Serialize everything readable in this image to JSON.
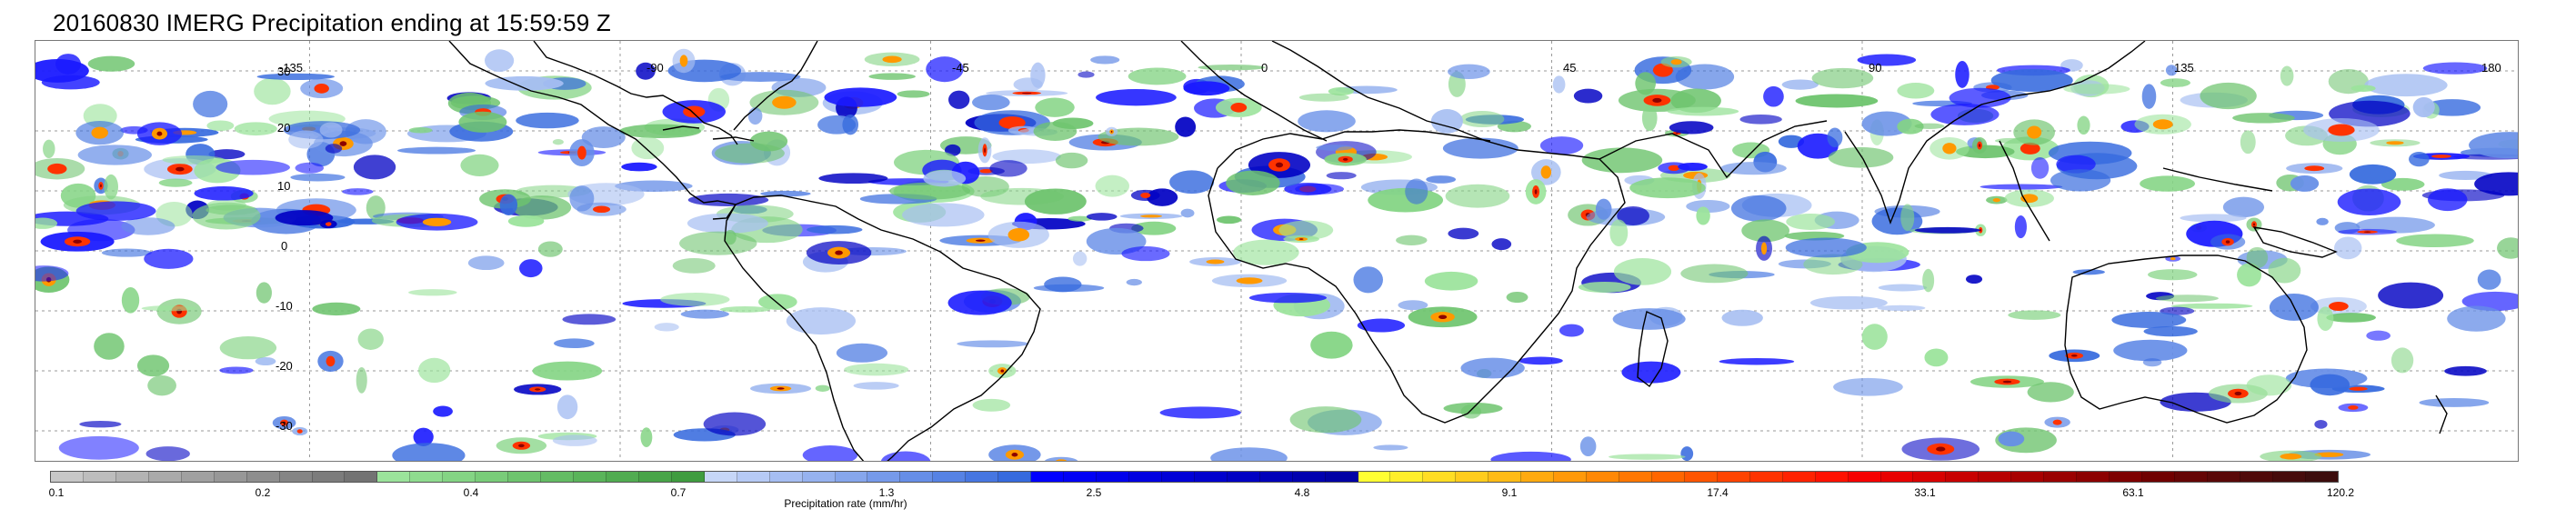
{
  "title": "20160830 IMERG Precipitation ending at 15:59:59 Z",
  "map": {
    "lon_labels": [
      "-135",
      "-90",
      "-45",
      "0",
      "45",
      "90",
      "135",
      "180"
    ],
    "lat_labels": [
      "30",
      "20",
      "10",
      "0",
      "-10",
      "-20",
      "-30"
    ]
  },
  "colorbar": {
    "label": "Precipitation rate (mm/hr)",
    "tick_labels": [
      "0.1",
      "0.2",
      "0.4",
      "0.7",
      "1.3",
      "2.5",
      "4.8",
      "9.1",
      "17.4",
      "33.1",
      "63.1",
      "120.2"
    ],
    "colors": [
      "#c7c7c7",
      "#bdbdbd",
      "#b3b3b3",
      "#aaaaaa",
      "#a0a0a0",
      "#979797",
      "#8e8e8e",
      "#858585",
      "#7c7c7c",
      "#737373",
      "#9be39b",
      "#8fdc8f",
      "#84d484",
      "#79cc79",
      "#6ec46e",
      "#64bc64",
      "#5ab45a",
      "#51ac51",
      "#48a448",
      "#3f9c3f",
      "#c6d6f7",
      "#b6caf5",
      "#a6bef2",
      "#96b2ef",
      "#86a6ec",
      "#769aea",
      "#668ee7",
      "#5682e4",
      "#4676e1",
      "#366ade",
      "#0000ff",
      "#0000f5",
      "#0000eb",
      "#0000e1",
      "#0000d7",
      "#0000cd",
      "#0000c3",
      "#0000b9",
      "#0000af",
      "#0000a5",
      "#ffff33",
      "#ffee2b",
      "#ffdd24",
      "#ffcc1d",
      "#ffbb16",
      "#ffaa10",
      "#ff990a",
      "#ff8805",
      "#ff7702",
      "#ff6600",
      "#ff5500",
      "#ff4400",
      "#ff3300",
      "#ff2200",
      "#ff1100",
      "#f60000",
      "#e80000",
      "#d80000",
      "#c80000",
      "#b80000",
      "#a80000",
      "#9a0000",
      "#8c0000",
      "#7e0000",
      "#700000",
      "#650505",
      "#5a0808",
      "#500a0a",
      "#460b0b",
      "#3c0c0c"
    ]
  }
}
